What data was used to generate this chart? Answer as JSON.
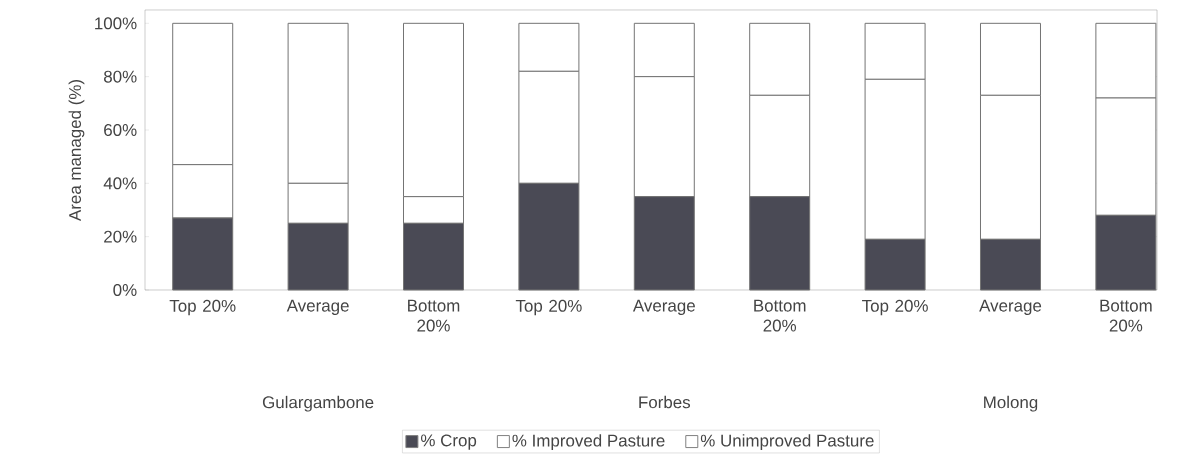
{
  "chart_data": {
    "type": "bar",
    "stacked": true,
    "ylabel": "Area managed (%)",
    "categories": [
      "Top 20%",
      "Average",
      "Bottom 20%",
      "Top 20%",
      "Average",
      "Bottom 20%",
      "Top 20%",
      "Average",
      "Bottom 20%"
    ],
    "annotations": [
      "Gulargambone",
      "Forbes",
      "Molong"
    ],
    "series": [
      {
        "name": "% Crop",
        "color": "#4a4a55",
        "values": [
          27,
          25,
          25,
          40,
          35,
          35,
          19,
          19,
          28
        ]
      },
      {
        "name": "% Improved Pasture",
        "color": "#ffffff",
        "values": [
          20,
          15,
          10,
          42,
          45,
          38,
          60,
          54,
          44
        ]
      },
      {
        "name": "% Unimproved Pasture",
        "color": "#ffffff",
        "values": [
          53,
          60,
          65,
          18,
          20,
          27,
          21,
          27,
          28
        ]
      }
    ],
    "ylim": [
      0,
      105
    ],
    "yticks": [
      {
        "value": 0,
        "label": "0%"
      },
      {
        "value": 20,
        "label": "20%"
      },
      {
        "value": 40,
        "label": "40%"
      },
      {
        "value": 60,
        "label": "60%"
      },
      {
        "value": 80,
        "label": "80%"
      },
      {
        "value": 100,
        "label": "100%"
      }
    ],
    "legend": "bottom"
  }
}
